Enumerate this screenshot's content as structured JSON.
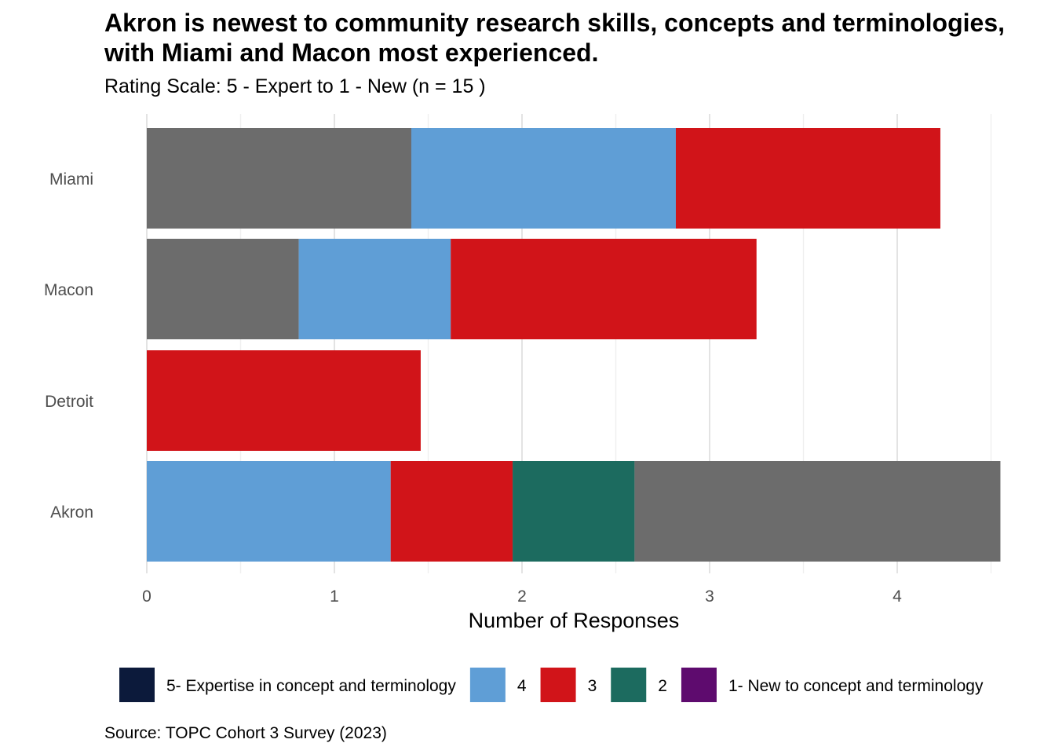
{
  "chart_data": {
    "type": "bar",
    "orientation": "horizontal",
    "stacked": true,
    "title": "Akron is newest to community research skills, concepts and terminologies, with Miami and Macon most experienced.",
    "subtitle": "Rating Scale: 5 - Expert to 1 - New (n = 15 )",
    "xlabel": "Number of Responses",
    "ylabel": "",
    "caption": "Source: TOPC Cohort 3 Survey (2023)",
    "xlim": [
      0,
      4.55
    ],
    "xticks": [
      "0",
      "1",
      "2",
      "3",
      "4"
    ],
    "grid": true,
    "legend_position": "bottom",
    "categories": [
      "Miami",
      "Macon",
      "Detroit",
      "Akron"
    ],
    "legend": [
      {
        "label": "5- Expertise in concept and terminology",
        "color": "#0c1a3b"
      },
      {
        "label": "4",
        "color": "#5f9ed6"
      },
      {
        "label": "3",
        "color": "#d11419"
      },
      {
        "label": "2",
        "color": "#1c6b5f"
      },
      {
        "label": "1- New to concept and terminology",
        "color": "#5e0b6e"
      }
    ],
    "bars": [
      {
        "category": "Miami",
        "segments": [
          {
            "color": "#6c6c6c",
            "value": 1.41
          },
          {
            "color": "#5f9ed6",
            "value": 1.41
          },
          {
            "color": "#d11419",
            "value": 1.41
          }
        ]
      },
      {
        "category": "Macon",
        "segments": [
          {
            "color": "#6c6c6c",
            "value": 0.81
          },
          {
            "color": "#5f9ed6",
            "value": 0.81
          },
          {
            "color": "#d11419",
            "value": 1.63
          }
        ]
      },
      {
        "category": "Detroit",
        "segments": [
          {
            "color": "#d11419",
            "value": 1.46
          }
        ]
      },
      {
        "category": "Akron",
        "segments": [
          {
            "color": "#5f9ed6",
            "value": 1.3
          },
          {
            "color": "#d11419",
            "value": 0.65
          },
          {
            "color": "#1c6b5f",
            "value": 0.65
          },
          {
            "color": "#6c6c6c",
            "value": 1.95
          }
        ]
      }
    ]
  }
}
